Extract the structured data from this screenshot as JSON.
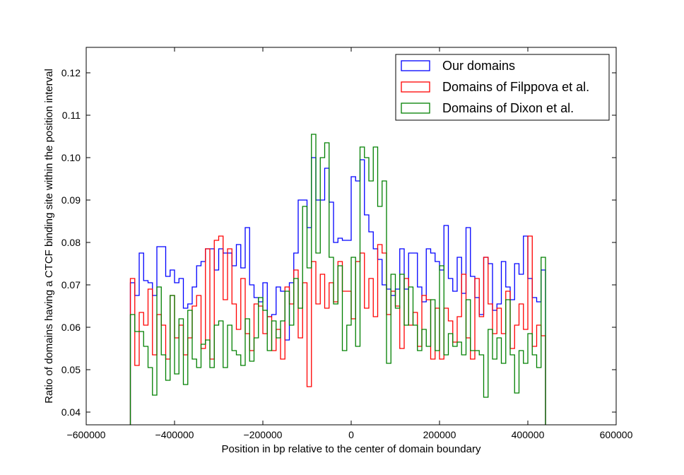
{
  "chart_data": {
    "type": "step-histogram",
    "title": "",
    "xlabel": "Position in bp relative to the center of domain boundary",
    "ylabel": "Ratio of domains having a CTCF binding site within the position interval",
    "xlim": [
      -600000,
      600000
    ],
    "ylim": [
      0.037,
      0.126
    ],
    "xticks": [
      -600000,
      -400000,
      -200000,
      0,
      200000,
      400000,
      600000
    ],
    "xtick_labels": [
      "−600000",
      "−400000",
      "−200000",
      "0",
      "200000",
      "400000",
      "600000"
    ],
    "yticks": [
      0.04,
      0.05,
      0.06,
      0.07,
      0.08,
      0.09,
      0.1,
      0.11,
      0.12
    ],
    "ytick_labels": [
      "0.04",
      "0.05",
      "0.06",
      "0.07",
      "0.08",
      "0.09",
      "0.10",
      "0.11",
      "0.12"
    ],
    "bin_start": -500000,
    "bin_width": 10000,
    "legend_position": "top-right",
    "series": [
      {
        "name": "Our domains",
        "color": "#0000ff",
        "values": [
          0.0705,
          0.0675,
          0.0775,
          0.071,
          0.0705,
          0.0675,
          0.079,
          0.079,
          0.072,
          0.0735,
          0.0705,
          0.0715,
          0.0645,
          0.0655,
          0.0695,
          0.0745,
          0.0755,
          0.0785,
          0.0785,
          0.0735,
          0.0785,
          0.0775,
          0.0775,
          0.0745,
          0.0795,
          0.074,
          0.0835,
          0.07,
          0.067,
          0.066,
          0.0705,
          0.0625,
          0.063,
          0.0695,
          0.0685,
          0.057,
          0.0705,
          0.0775,
          0.09,
          0.09,
          0.0835,
          0.1,
          0.09,
          0.09,
          0.0975,
          0.0895,
          0.08,
          0.081,
          0.0805,
          0.0805,
          0.0955,
          0.0945,
          0.0995,
          0.0865,
          0.0825,
          0.0785,
          0.076,
          0.07,
          0.069,
          0.0675,
          0.069,
          0.0785,
          0.069,
          0.0775,
          0.0775,
          0.0695,
          0.066,
          0.0785,
          0.0775,
          0.0755,
          0.0735,
          0.084,
          0.0715,
          0.0685,
          0.0765,
          0.068,
          0.0835,
          0.072,
          0.067,
          0.063,
          0.0765,
          0.075,
          0.064,
          0.0655,
          0.0755,
          0.0695,
          0.0665,
          0.075,
          0.0725,
          0.0815,
          0.0715,
          0.067,
          0.066,
          0.0735
        ],
        "values_note": "approximate bin heights read from the figure"
      },
      {
        "name": "Domains of Filppova et al.",
        "color": "#ff0000",
        "values": [
          0.0715,
          0.051,
          0.0635,
          0.0605,
          0.069,
          0.0535,
          0.063,
          0.0605,
          0.0525,
          0.0675,
          0.0575,
          0.0605,
          0.0535,
          0.0575,
          0.065,
          0.0675,
          0.055,
          0.0785,
          0.0525,
          0.0805,
          0.0815,
          0.0665,
          0.0785,
          0.0655,
          0.0595,
          0.0715,
          0.0585,
          0.0545,
          0.0655,
          0.065,
          0.0585,
          0.0625,
          0.0545,
          0.0595,
          0.0525,
          0.0695,
          0.0655,
          0.0735,
          0.0575,
          0.0705,
          0.046,
          0.0755,
          0.0655,
          0.0725,
          0.0645,
          0.0705,
          0.066,
          0.0755,
          0.0685,
          0.0685,
          0.062,
          0.0755,
          0.0775,
          0.0645,
          0.0715,
          0.0625,
          0.0795,
          0.0775,
          0.063,
          0.0685,
          0.065,
          0.055,
          0.0715,
          0.0605,
          0.0635,
          0.0555,
          0.0675,
          0.0665,
          0.0525,
          0.0645,
          0.0525,
          0.0645,
          0.0615,
          0.0565,
          0.0625,
          0.0725,
          0.0575,
          0.0525,
          0.0715,
          0.0625,
          0.0765,
          0.0655,
          0.0585,
          0.0645,
          0.0585,
          0.0685,
          0.055,
          0.0605,
          0.0655,
          0.0595,
          0.0815,
          0.0555,
          0.0605,
          0.058
        ],
        "values_note": "approximate bin heights read from the figure"
      },
      {
        "name": "Domains of Dixon et al.",
        "color": "#008000",
        "values": [
          0.063,
          0.059,
          0.059,
          0.0555,
          0.0505,
          0.044,
          0.0695,
          0.0535,
          0.0475,
          0.0675,
          0.049,
          0.062,
          0.0465,
          0.064,
          0.0525,
          0.0505,
          0.056,
          0.057,
          0.0505,
          0.0605,
          0.0615,
          0.0505,
          0.0605,
          0.0545,
          0.0535,
          0.051,
          0.062,
          0.052,
          0.0575,
          0.067,
          0.064,
          0.0545,
          0.0615,
          0.0575,
          0.0615,
          0.0685,
          0.0605,
          0.0715,
          0.0645,
          0.0885,
          0.074,
          0.1055,
          0.0775,
          0.1,
          0.1035,
          0.0765,
          0.0655,
          0.0745,
          0.0545,
          0.0605,
          0.0765,
          0.0555,
          0.1025,
          0.1,
          0.0945,
          0.1025,
          0.0885,
          0.0945,
          0.0515,
          0.0725,
          0.0645,
          0.0725,
          0.0605,
          0.0695,
          0.0605,
          0.0545,
          0.0595,
          0.0555,
          0.0665,
          0.0545,
          0.0745,
          0.0535,
          0.0585,
          0.0555,
          0.0565,
          0.0535,
          0.0665,
          0.0545,
          0.0545,
          0.0535,
          0.0435,
          0.0595,
          0.0525,
          0.0575,
          0.0515,
          0.0665,
          0.0535,
          0.0445,
          0.0545,
          0.0515,
          0.0585,
          0.0535,
          0.0505,
          0.0765
        ],
        "values_note": "approximate bin heights read from the figure"
      }
    ]
  }
}
